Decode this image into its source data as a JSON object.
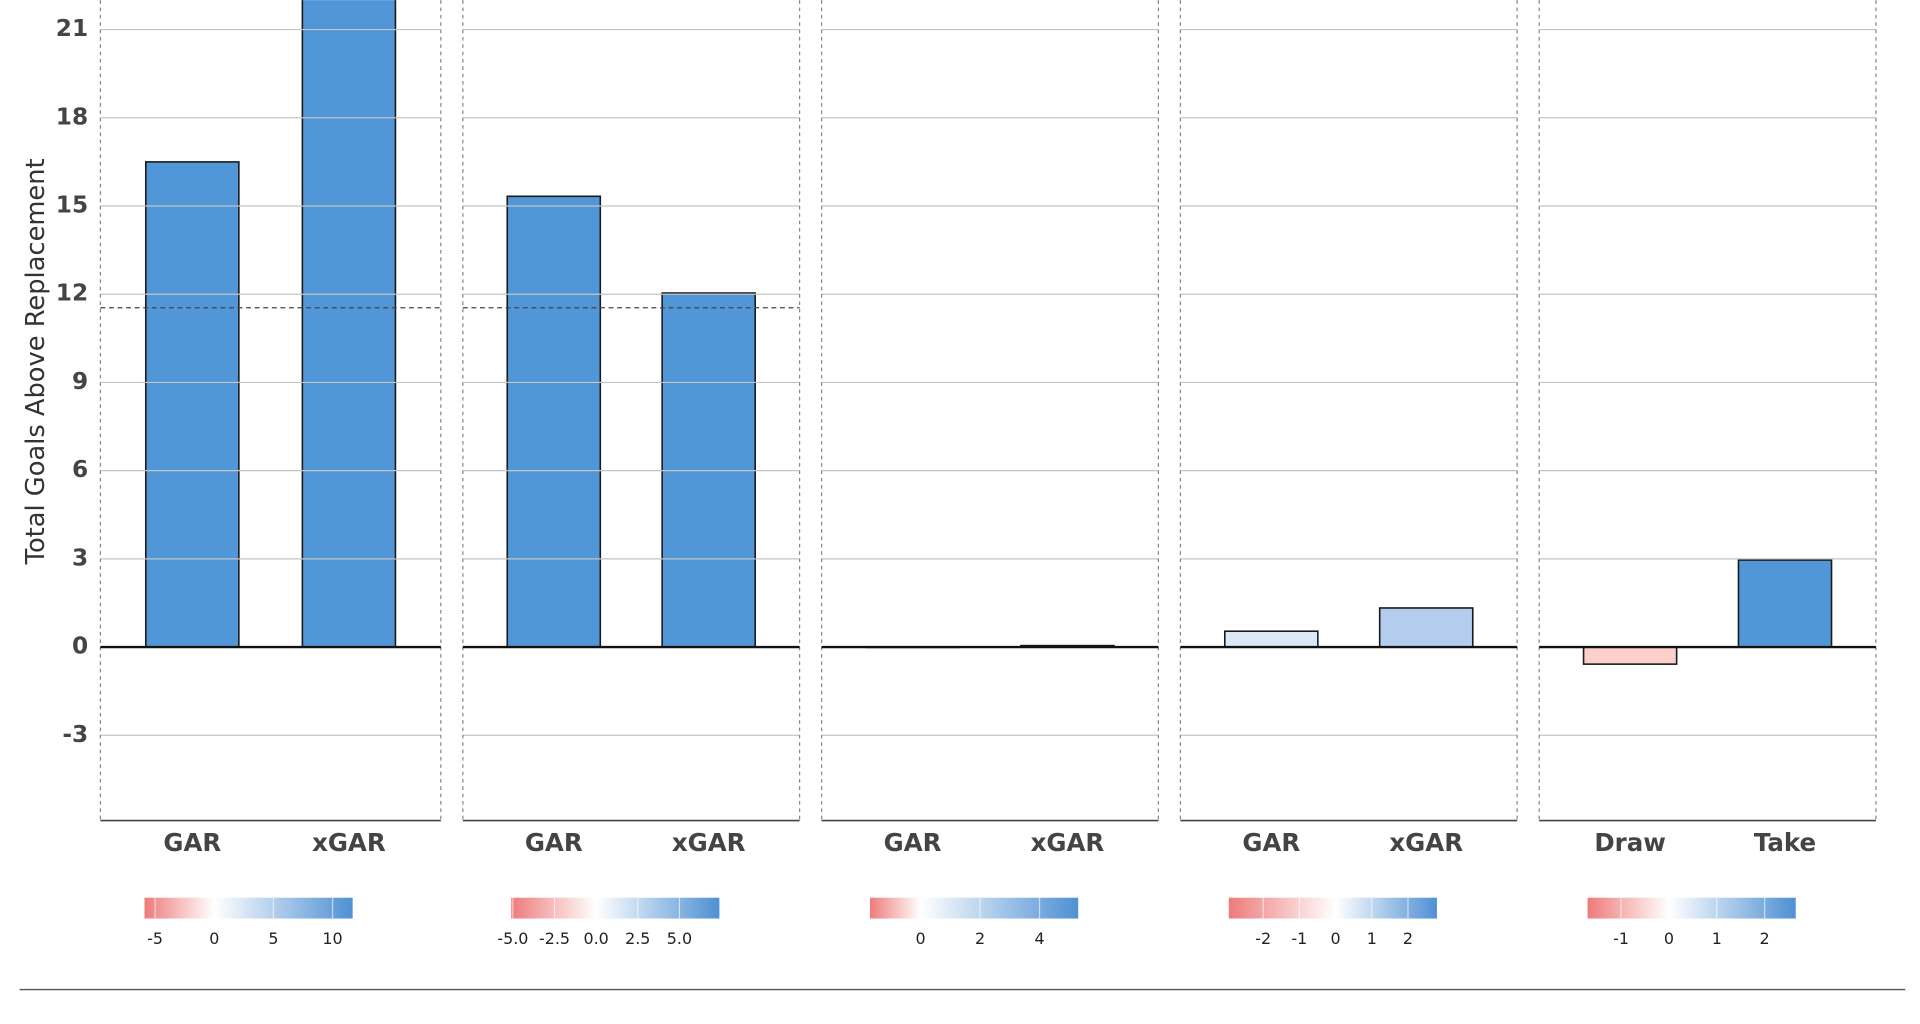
{
  "chart_data": [
    {
      "type": "bar",
      "y_label": "Total Goals Above Replacement",
      "categories": [
        "GAR",
        "xGAR"
      ],
      "values": [
        16.5,
        22.5
      ],
      "colors": [
        "#5196d6",
        "#5196d6"
      ],
      "ylim": [
        -5.9,
        22
      ],
      "yticks": [
        -3,
        0,
        3,
        6,
        9,
        12,
        15,
        18,
        21
      ],
      "reference_line": 11.54,
      "colorbar": {
        "lim": [
          -5.9,
          11.7
        ],
        "ticks": [
          -5,
          0,
          5,
          10
        ],
        "colors": [
          "#ee7b7b",
          "#ffffff",
          "#4f90d4"
        ]
      }
    },
    {
      "type": "bar",
      "categories": [
        "GAR",
        "xGAR"
      ],
      "values": [
        15.33,
        12.04
      ],
      "colors": [
        "#5196d6",
        "#5196d6"
      ],
      "ylim": [
        -5.9,
        22
      ],
      "yticks": [
        -3,
        0,
        3,
        6,
        9,
        12,
        15,
        18,
        21
      ],
      "reference_line": 11.54,
      "colorbar": {
        "lim": [
          -5.1,
          7.4
        ],
        "ticks": [
          {
            "value": -5,
            "label": "-5.0"
          },
          {
            "value": -2.5,
            "label": "-2.5"
          },
          {
            "value": 0,
            "label": "0.0"
          },
          {
            "value": 2.5,
            "label": "2.5"
          },
          {
            "value": 5,
            "label": "5.0"
          }
        ],
        "colors": [
          "#ee7b7b",
          "#ffffff",
          "#4f90d4"
        ]
      }
    },
    {
      "type": "bar",
      "categories": [
        "GAR",
        "xGAR"
      ],
      "values": [
        0.01,
        0.05
      ],
      "colors": [
        "#fbfbfd",
        "#f6f9fd"
      ],
      "ylim": [
        -5.9,
        22
      ],
      "yticks": [
        -3,
        0,
        3,
        6,
        9,
        12,
        15,
        18,
        21
      ],
      "colorbar": {
        "lim": [
          -1.7,
          5.3
        ],
        "ticks": [
          0,
          2,
          4
        ],
        "colors": [
          "#ee7b7b",
          "#ffffff",
          "#4f90d4"
        ]
      }
    },
    {
      "type": "bar",
      "categories": [
        "GAR",
        "xGAR"
      ],
      "values": [
        0.54,
        1.33
      ],
      "colors": [
        "#dde8f6",
        "#b4cdee"
      ],
      "ylim": [
        -5.9,
        22
      ],
      "yticks": [
        -3,
        0,
        3,
        6,
        9,
        12,
        15,
        18,
        21
      ],
      "colorbar": {
        "lim": [
          -2.95,
          2.8
        ],
        "ticks": [
          -2,
          -1,
          0,
          1,
          2
        ],
        "colors": [
          "#ee7b7b",
          "#ffffff",
          "#4f90d4"
        ]
      }
    },
    {
      "type": "bar",
      "categories": [
        "Draw",
        "Take"
      ],
      "values": [
        -0.58,
        2.96
      ],
      "colors": [
        "#fbd0cc",
        "#5196d6"
      ],
      "ylim": [
        -5.9,
        22
      ],
      "yticks": [
        -3,
        0,
        3,
        6,
        9,
        12,
        15,
        18,
        21
      ],
      "colorbar": {
        "lim": [
          -1.7,
          2.65
        ],
        "ticks": [
          -1,
          0,
          1,
          2
        ],
        "colors": [
          "#ee7b7b",
          "#ffffff",
          "#4f90d4"
        ]
      }
    }
  ]
}
